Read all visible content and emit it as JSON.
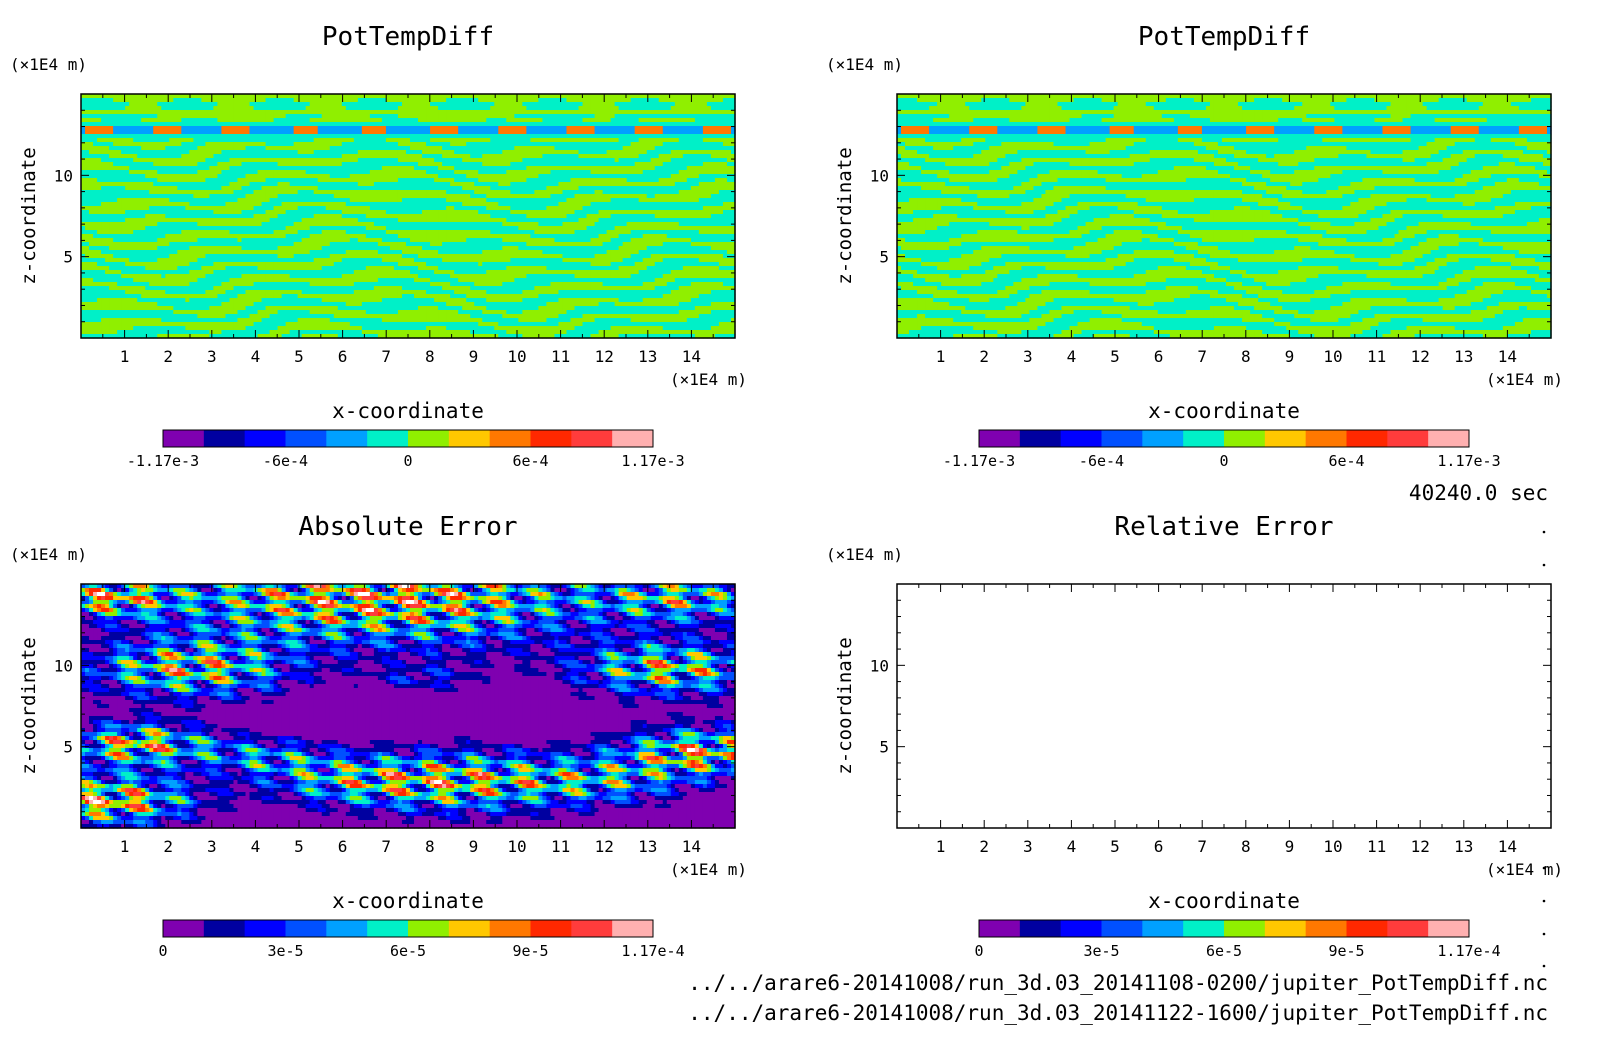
{
  "figure": {
    "time_label": "40240.0 sec",
    "file_paths": [
      "../../arare6-20141008/run_3d.03_20141108-0200/jupiter_PotTempDiff.nc",
      "../../arare6-20141008/run_3d.03_20141122-1600/jupiter_PotTempDiff.nc"
    ]
  },
  "chart_data": [
    {
      "type": "heatmap",
      "title": "PotTempDiff",
      "xlabel": "x-coordinate",
      "ylabel": "z-coordinate",
      "x_unit": "(×1E4 m)",
      "y_unit": "(×1E4 m)",
      "xlim": [
        0,
        15
      ],
      "ylim": [
        0,
        15
      ],
      "x_ticks": [
        1,
        2,
        3,
        4,
        5,
        6,
        7,
        8,
        9,
        10,
        11,
        12,
        13,
        14
      ],
      "y_ticks": [
        5,
        10
      ],
      "field_pattern": "stripes",
      "variant": 1,
      "colorbar": {
        "range": [
          -0.00117,
          0.00117
        ],
        "tick_labels": [
          "-1.17e-3",
          "-6e-4",
          "0",
          "6e-4",
          "1.17e-3"
        ],
        "colors": [
          "#7f00b0",
          "#0000a0",
          "#0000ff",
          "#0050ff",
          "#00a0ff",
          "#00f0c8",
          "#90ef00",
          "#ffc800",
          "#ff7800",
          "#ff2800",
          "#ff3c3c",
          "#ffb0b0"
        ]
      }
    },
    {
      "type": "heatmap",
      "title": "PotTempDiff",
      "xlabel": "x-coordinate",
      "ylabel": "z-coordinate",
      "x_unit": "(×1E4 m)",
      "y_unit": "(×1E4 m)",
      "xlim": [
        0,
        15
      ],
      "ylim": [
        0,
        15
      ],
      "x_ticks": [
        1,
        2,
        3,
        4,
        5,
        6,
        7,
        8,
        9,
        10,
        11,
        12,
        13,
        14
      ],
      "y_ticks": [
        5,
        10
      ],
      "field_pattern": "stripes",
      "variant": 2,
      "colorbar": {
        "range": [
          -0.00117,
          0.00117
        ],
        "tick_labels": [
          "-1.17e-3",
          "-6e-4",
          "0",
          "6e-4",
          "1.17e-3"
        ],
        "colors": [
          "#7f00b0",
          "#0000a0",
          "#0000ff",
          "#0050ff",
          "#00a0ff",
          "#00f0c8",
          "#90ef00",
          "#ffc800",
          "#ff7800",
          "#ff2800",
          "#ff3c3c",
          "#ffb0b0"
        ]
      }
    },
    {
      "type": "heatmap",
      "title": "Absolute Error",
      "xlabel": "x-coordinate",
      "ylabel": "z-coordinate",
      "x_unit": "(×1E4 m)",
      "y_unit": "(×1E4 m)",
      "xlim": [
        0,
        15
      ],
      "ylim": [
        0,
        15
      ],
      "x_ticks": [
        1,
        2,
        3,
        4,
        5,
        6,
        7,
        8,
        9,
        10,
        11,
        12,
        13,
        14
      ],
      "y_ticks": [
        5,
        10
      ],
      "field_pattern": "error",
      "variant": 3,
      "colorbar": {
        "range": [
          0,
          0.000117
        ],
        "tick_labels": [
          "0",
          "3e-5",
          "6e-5",
          "9e-5",
          "1.17e-4"
        ],
        "colors": [
          "#7f00b0",
          "#0000a0",
          "#0000ff",
          "#0050ff",
          "#00a0ff",
          "#00f0c8",
          "#90ef00",
          "#ffc800",
          "#ff7800",
          "#ff2800",
          "#ff3c3c",
          "#ffb0b0"
        ]
      }
    },
    {
      "type": "heatmap",
      "title": "Relative Error",
      "xlabel": "x-coordinate",
      "ylabel": "z-coordinate",
      "x_unit": "(×1E4 m)",
      "y_unit": "(×1E4 m)",
      "xlim": [
        0,
        15
      ],
      "ylim": [
        0,
        15
      ],
      "x_ticks": [
        1,
        2,
        3,
        4,
        5,
        6,
        7,
        8,
        9,
        10,
        11,
        12,
        13,
        14
      ],
      "y_ticks": [
        5,
        10
      ],
      "field_pattern": "empty",
      "variant": 4,
      "colorbar": {
        "range": [
          0,
          0.000117
        ],
        "tick_labels": [
          "0",
          "3e-5",
          "6e-5",
          "9e-5",
          "1.17e-4"
        ],
        "colors": [
          "#7f00b0",
          "#0000a0",
          "#0000ff",
          "#0050ff",
          "#00a0ff",
          "#00f0c8",
          "#90ef00",
          "#ffc800",
          "#ff7800",
          "#ff2800",
          "#ff3c3c",
          "#ffb0b0"
        ]
      }
    }
  ]
}
